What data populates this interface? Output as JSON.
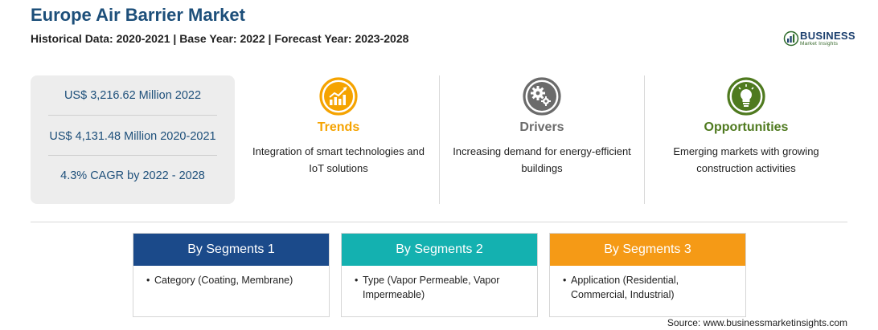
{
  "header": {
    "title": "Europe Air Barrier Market",
    "subtitle": "Historical Data: 2020-2021 | Base Year: 2022 | Forecast Year: 2023-2028"
  },
  "logo": {
    "name": "BUSINESS",
    "tagline": "Market Insights",
    "icon": "globe-chart-icon"
  },
  "stats": [
    {
      "text": "US$ 3,216.62 Million 2022"
    },
    {
      "text": "US$ 4,131.48 Million 2020-2021"
    },
    {
      "text": "4.3% CAGR by 2022 - 2028"
    }
  ],
  "columns": [
    {
      "heading": "Trends",
      "text": "Integration of smart technologies and IoT solutions",
      "color": "#f5a300",
      "icon": "trend-chart-icon"
    },
    {
      "heading": "Drivers",
      "text": "Increasing demand for energy-efficient buildings",
      "color": "#6b6b6b",
      "icon": "gears-icon"
    },
    {
      "heading": "Opportunities",
      "text": "Emerging markets with growing construction activities",
      "color": "#4f7a1f",
      "icon": "lightbulb-icon"
    }
  ],
  "segments": [
    {
      "heading": "By Segments 1",
      "color": "#1b4a8a",
      "items": [
        "Category (Coating, Membrane)"
      ]
    },
    {
      "heading": "By Segments 2",
      "color": "#14b1b0",
      "items": [
        "Type (Vapor Permeable, Vapor Impermeable)"
      ]
    },
    {
      "heading": "By Segments 3",
      "color": "#f59a16",
      "items": [
        "Application (Residential, Commercial, Industrial)"
      ]
    }
  ],
  "source": "Source: www.businessmarketinsights.com"
}
